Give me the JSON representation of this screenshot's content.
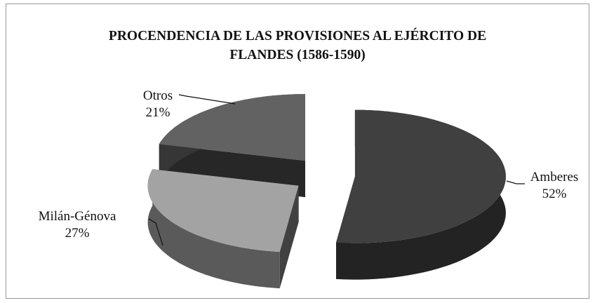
{
  "chart_data": {
    "type": "pie",
    "title": "PROCENDENCIA DE LAS PROVISIONES AL EJÉRCITO DE FLANDES (1586-1590)",
    "categories": [
      "Amberes",
      "Milán-Génova",
      "Otros"
    ],
    "values": [
      52,
      27,
      21
    ],
    "value_labels": [
      "52%",
      "27%",
      "21%"
    ],
    "colors": [
      "#404040",
      "#a3a3a3",
      "#626262"
    ],
    "exploded": true,
    "three_d": true
  }
}
